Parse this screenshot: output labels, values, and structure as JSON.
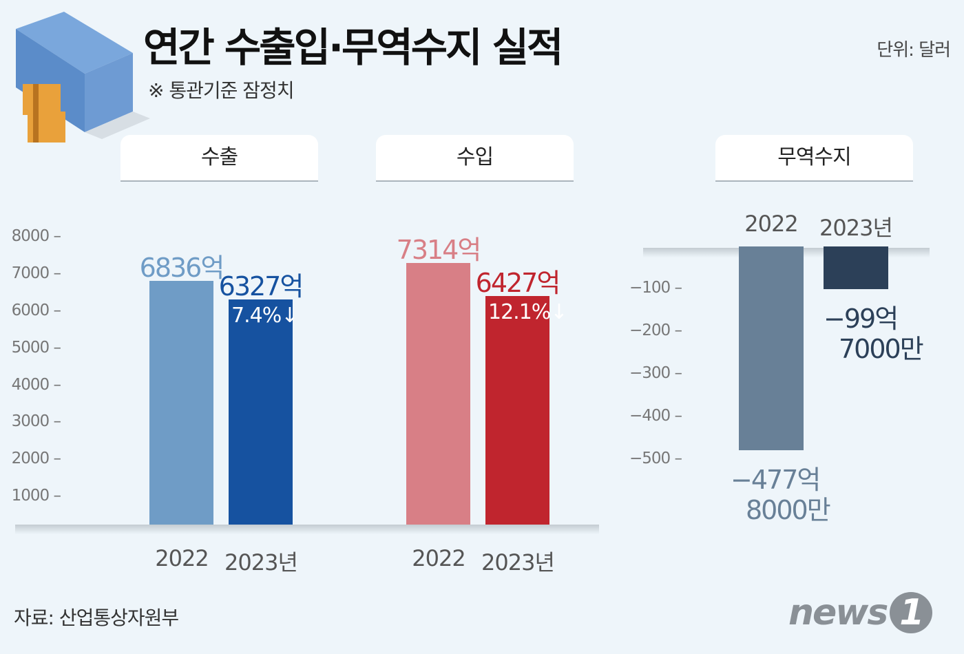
{
  "header": {
    "title": "연간 수출입·무역수지 실적",
    "subtitle": "※ 통관기준 잠정치",
    "unit": "단위: 달러"
  },
  "footer": {
    "source": "자료: 산업통상자원부",
    "logo": "news1"
  },
  "colors": {
    "background": "#eef5fa",
    "export_2022": "#6f9cc6",
    "export_2023": "#1652a0",
    "import_2022": "#d87f86",
    "import_2023": "#c0252e",
    "balance_2022": "#688097",
    "balance_2023": "#2c4058"
  },
  "chart_data": [
    {
      "type": "bar",
      "title": "수출",
      "categories": [
        "2022",
        "2023년"
      ],
      "values": [
        6836,
        6327
      ],
      "value_labels": [
        "6836억",
        "6327억"
      ],
      "change_label": "7.4%↓",
      "ylabel_unit": "억 달러",
      "ylim": [
        0,
        8000
      ],
      "yticks": [
        "8000",
        "7000",
        "6000",
        "5000",
        "4000",
        "3000",
        "2000",
        "1000"
      ]
    },
    {
      "type": "bar",
      "title": "수입",
      "categories": [
        "2022",
        "2023년"
      ],
      "values": [
        7314,
        6427
      ],
      "value_labels": [
        "7314억",
        "6427억"
      ],
      "change_label": "12.1%↓",
      "ylim": [
        0,
        8000
      ]
    },
    {
      "type": "bar",
      "title": "무역수지",
      "categories": [
        "2022",
        "2023년"
      ],
      "values": [
        -477.8,
        -99.7
      ],
      "value_labels": [
        "-477억 8000만",
        "-99억 7000만"
      ],
      "value_labels_line1": [
        "−477억",
        "−99억"
      ],
      "value_labels_line2": [
        "8000만",
        "7000만"
      ],
      "ylim": [
        -500,
        0
      ],
      "yticks": [
        "−100",
        "−200",
        "−300",
        "−400",
        "−500"
      ]
    }
  ]
}
